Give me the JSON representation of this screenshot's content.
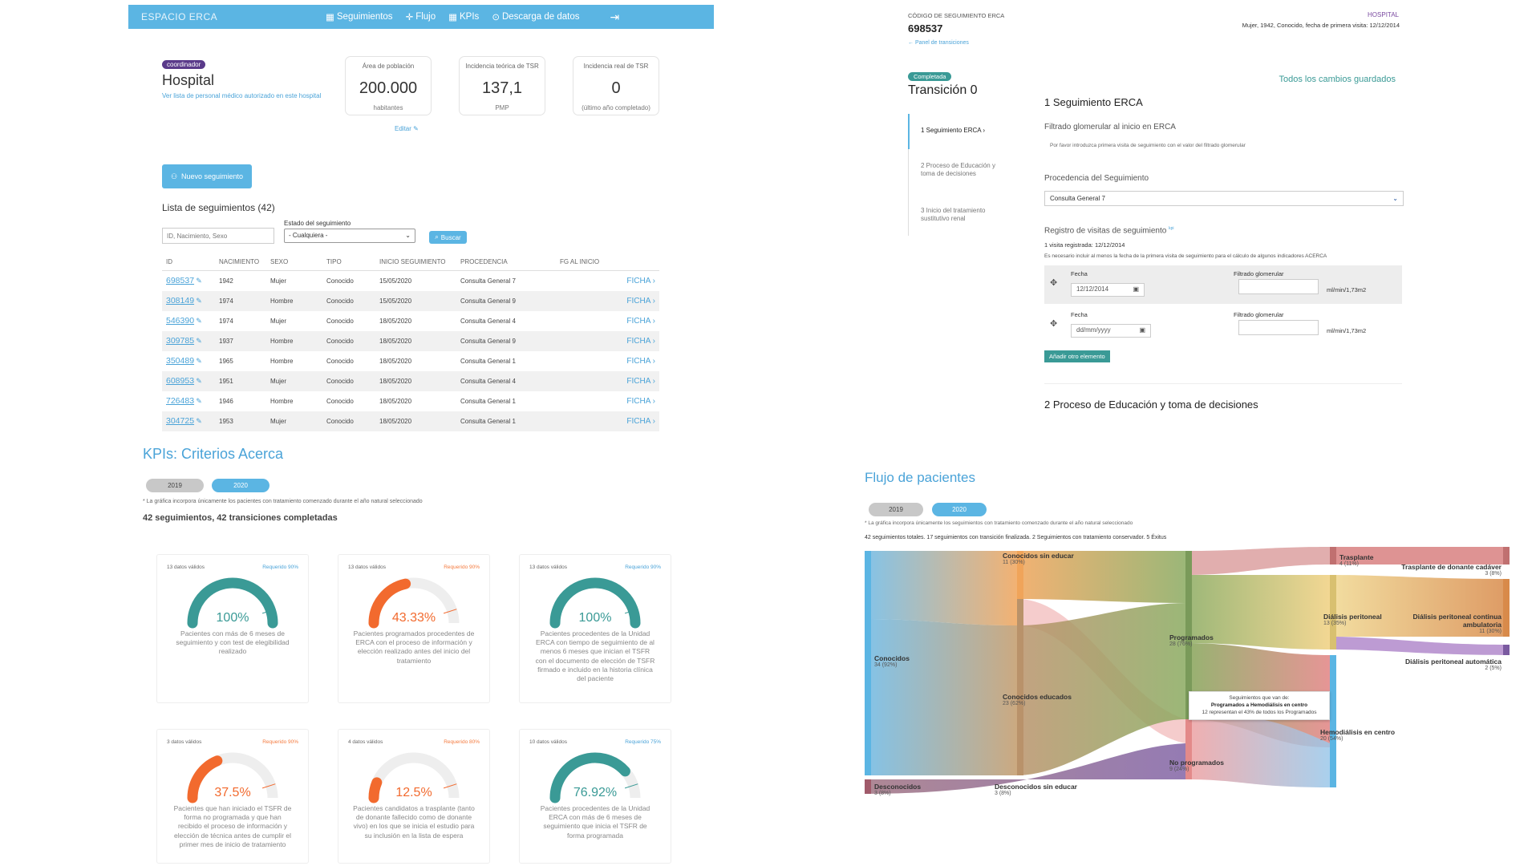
{
  "nav": {
    "logo": "ESPACIO ERCA",
    "links": [
      "Seguimientos",
      "Flujo",
      "KPIs",
      "Descarga de datos"
    ]
  },
  "hospital": {
    "badge": "coordinador",
    "name": "Hospital",
    "staff_link": "Ver lista de personal médico autorizado en este hospital",
    "edit": "Editar"
  },
  "stats": [
    {
      "label": "Área de población",
      "value": "200.000",
      "sub": "habitantes"
    },
    {
      "label": "Incidencia teórica de TSR",
      "value": "137,1",
      "sub": "PMP"
    },
    {
      "label": "Incidencia real de TSR",
      "value": "0",
      "sub": "(último año completado)"
    }
  ],
  "new_button": "Nuevo seguimiento",
  "list": {
    "title": "Lista de seguimientos (42)",
    "search_placeholder": "ID, Nacimiento, Sexo",
    "state_label": "Estado del seguimiento",
    "state_value": "- Cualquiera -",
    "search_button": "Buscar",
    "columns": [
      "ID",
      "NACIMIENTO",
      "SEXO",
      "TIPO",
      "INICIO SEGUIMIENTO",
      "PROCEDENCIA",
      "FG AL INICIO",
      ""
    ],
    "ficha": "FICHA",
    "rows": [
      [
        "698537",
        "1942",
        "Mujer",
        "Conocido",
        "15/05/2020",
        "Consulta General 7"
      ],
      [
        "308149",
        "1974",
        "Hombre",
        "Conocido",
        "15/05/2020",
        "Consulta General 9"
      ],
      [
        "546390",
        "1974",
        "Mujer",
        "Conocido",
        "18/05/2020",
        "Consulta General 4"
      ],
      [
        "309785",
        "1937",
        "Hombre",
        "Conocido",
        "18/05/2020",
        "Consulta General 9"
      ],
      [
        "350489",
        "1965",
        "Hombre",
        "Conocido",
        "18/05/2020",
        "Consulta General 1"
      ],
      [
        "608953",
        "1951",
        "Mujer",
        "Conocido",
        "18/05/2020",
        "Consulta General 4"
      ],
      [
        "726483",
        "1946",
        "Hombre",
        "Conocido",
        "18/05/2020",
        "Consulta General 1"
      ],
      [
        "304725",
        "1953",
        "Mujer",
        "Conocido",
        "18/05/2020",
        "Consulta General 1"
      ]
    ]
  },
  "kpis": {
    "title": "KPIs: Criterios Acerca",
    "years": [
      "2019",
      "2020"
    ],
    "note": "* La gráfica incorpora únicamente los pacientes con tratamiento comenzado durante el año natural seleccionado",
    "summary": "42 seguimientos, 42 transiciones completadas",
    "cards": [
      {
        "valid": "13 datos válidos",
        "req": "Requerido 90%",
        "value": "100%",
        "fraction": 1.0,
        "color": "#3a9a96",
        "req_ok": true,
        "desc": "Pacientes con más de 6 meses de seguimiento y con test de elegibilidad realizado"
      },
      {
        "valid": "13 datos válidos",
        "req": "Requerido 90%",
        "value": "43.33%",
        "fraction": 0.4333,
        "color": "#f26a2e",
        "req_ok": false,
        "desc": "Pacientes programados procedentes de ERCA con el proceso de información y elección realizado antes del inicio del tratamiento"
      },
      {
        "valid": "13 datos válidos",
        "req": "Requerido 90%",
        "value": "100%",
        "fraction": 1.0,
        "color": "#3a9a96",
        "req_ok": true,
        "desc": "Pacientes procedentes de la Unidad ERCA con tiempo de seguimiento de al menos 6 meses que inician el TSFR con el documento de elección de TSFR firmado e incluido en la historia clínica del paciente"
      },
      {
        "valid": "3 datos válidos",
        "req": "Requerido 90%",
        "value": "37.5%",
        "fraction": 0.375,
        "color": "#f26a2e",
        "req_ok": false,
        "desc": "Pacientes que han iniciado el TSFR de forma no programada y que han recibido el proceso de información y elección de técnica antes de cumplir el primer mes de inicio de tratamiento"
      },
      {
        "valid": "4 datos válidos",
        "req": "Requerido 80%",
        "value": "12.5%",
        "fraction": 0.125,
        "color": "#f26a2e",
        "req_ok": false,
        "desc": "Pacientes candidatos a trasplante (tanto de donante fallecido como de donante vivo) en los que se inicia el estudio para su inclusión en la lista de espera"
      },
      {
        "valid": "10 datos válidos",
        "req": "Requerido 75%",
        "value": "76.92%",
        "fraction": 0.7692,
        "color": "#3a9a96",
        "req_ok": true,
        "desc": "Pacientes procedentes de la Unidad ERCA con más de 6 meses de seguimiento que inicia el TSFR de forma programada"
      }
    ]
  },
  "record": {
    "code_label": "CÓDIGO DE SEGUIMIENTO ERCA",
    "code": "698537",
    "back_link": "← Panel de transiciones",
    "hospital": "HOSPITAL",
    "patient": "Mujer, 1942, Conocido, fecha de primera visita: 12/12/2014",
    "status_badge": "Completada",
    "transition": "Transición 0",
    "saved": "Todos los cambios guardados",
    "steps": [
      "1 Seguimiento ERCA ›",
      "2 Proceso de Educación y toma de decisiones",
      "3 Inicio del tratamiento sustitutivo renal"
    ],
    "section1": "1 Seguimiento ERCA",
    "fg_title": "Filtrado glomerular al inicio en ERCA",
    "fg_help": "Por favor introduzca primera visita de seguimiento con el valor del filtrado glomerular",
    "origin_label": "Procedencia del Seguimiento",
    "origin_value": "Consulta General 7",
    "visits_title": "Registro de visitas de seguimiento",
    "visits_kpi": "kpi",
    "visits_count": "1 visita registrada: 12/12/2014",
    "visits_help": "Es necesario incluir al menos la fecha de la primera visita de seguimiento para el cálculo de algunos indicadores ACERCA",
    "date_label": "Fecha",
    "fg_label": "Filtrado glomerular",
    "unit": "ml/min/1,73m2",
    "visit1_date": "12/12/2014",
    "visit2_date": "dd/mm/yyyy",
    "add_button": "Añadir otro elemento",
    "section2": "2 Proceso de Educación y toma de decisiones"
  },
  "flow": {
    "title": "Flujo de pacientes",
    "years": [
      "2019",
      "2020"
    ],
    "note": "* La gráfica incorpora únicamente los seguimientos con tratamiento comenzado durante el año natural seleccionado",
    "summary": "42 seguimientos totales. 17 seguimientos con transición finalizada. 2 Seguimientos con tratamiento conservador. 5 Éxitus",
    "nodes": [
      {
        "name": "Conocidos",
        "count": "34 (92%)"
      },
      {
        "name": "Desconocidos",
        "count": "3 (8%)"
      },
      {
        "name": "Conocidos sin educar",
        "count": "11 (30%)"
      },
      {
        "name": "Conocidos educados",
        "count": "23 (62%)"
      },
      {
        "name": "Desconocidos sin educar",
        "count": "3 (8%)"
      },
      {
        "name": "Programados",
        "count": "28 (76%)"
      },
      {
        "name": "No programados",
        "count": "9 (24%)"
      },
      {
        "name": "Trasplante",
        "count": "4 (11%)"
      },
      {
        "name": "Diálisis peritoneal",
        "count": "13 (35%)"
      },
      {
        "name": "Hemodiálisis en centro",
        "count": "20 (54%)"
      },
      {
        "name": "Trasplante de donante cadáver",
        "count": "3 (8%)"
      },
      {
        "name": "Diálisis peritoneal continua ambulatoria",
        "count": "11 (30%)"
      },
      {
        "name": "Diálisis peritoneal automática",
        "count": "2 (5%)"
      }
    ],
    "tooltip": {
      "line1": "Seguimientos que van de:",
      "line2": "Programados a Hemodiálisis en centro",
      "line3": "12 representan el 43% de todos los Programados"
    },
    "colors": {
      "accent": "#5bb5e3",
      "teal": "#3a9a96",
      "orange": "#f26a2e",
      "purple": "#5a3a8a"
    }
  }
}
